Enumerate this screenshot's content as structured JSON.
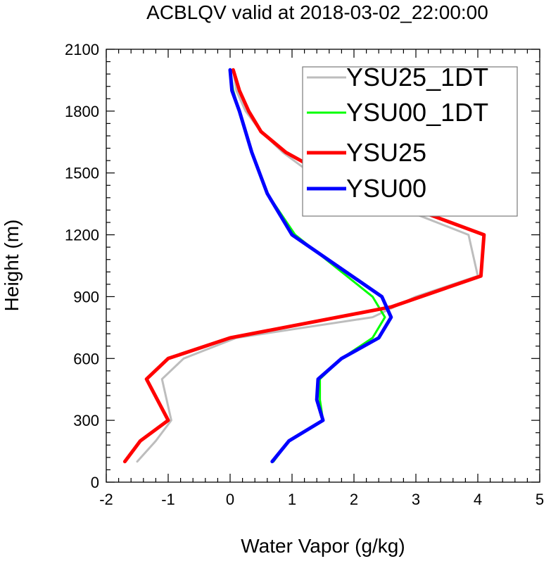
{
  "chart_data": {
    "type": "line",
    "title": "ACBLQV valid at 2018-03-02_22:00:00",
    "xlabel": "Water Vapor (g/kg)",
    "ylabel": "Height (m)",
    "xlim": [
      -2,
      5
    ],
    "ylim": [
      0,
      2100
    ],
    "xticks": [
      "-2",
      "-1",
      "0",
      "1",
      "2",
      "3",
      "4",
      "5"
    ],
    "yticks": [
      "0",
      "300",
      "600",
      "900",
      "1200",
      "1500",
      "1800",
      "2100"
    ],
    "legend_position": "top-right",
    "series": [
      {
        "name": "YSU25_1DT",
        "color": "#bdbdbd",
        "width": 3,
        "points": [
          [
            -1.5,
            100
          ],
          [
            -1.2,
            200
          ],
          [
            -0.95,
            300
          ],
          [
            -1.1,
            500
          ],
          [
            -0.75,
            600
          ],
          [
            0.1,
            700
          ],
          [
            2.3,
            800
          ],
          [
            3.0,
            900
          ],
          [
            4.0,
            1000
          ],
          [
            3.85,
            1200
          ],
          [
            3.0,
            1300
          ],
          [
            1.3,
            1500
          ],
          [
            0.85,
            1600
          ],
          [
            0.5,
            1700
          ],
          [
            0.25,
            1800
          ],
          [
            0.1,
            1900
          ],
          [
            0.05,
            2000
          ]
        ]
      },
      {
        "name": "YSU00_1DT",
        "color": "#00ff00",
        "width": 3,
        "points": [
          [
            0.7,
            100
          ],
          [
            0.95,
            200
          ],
          [
            1.5,
            300
          ],
          [
            1.45,
            400
          ],
          [
            1.45,
            500
          ],
          [
            1.8,
            600
          ],
          [
            2.3,
            700
          ],
          [
            2.5,
            800
          ],
          [
            2.3,
            900
          ],
          [
            1.05,
            1200
          ],
          [
            0.6,
            1400
          ],
          [
            0.35,
            1600
          ],
          [
            0.15,
            1800
          ],
          [
            0.05,
            1900
          ],
          [
            0.0,
            2000
          ]
        ]
      },
      {
        "name": "YSU25",
        "color": "#ff0000",
        "width": 5,
        "points": [
          [
            -1.7,
            100
          ],
          [
            -1.45,
            200
          ],
          [
            -1.0,
            300
          ],
          [
            -1.35,
            500
          ],
          [
            -1.0,
            600
          ],
          [
            0.0,
            700
          ],
          [
            2.6,
            850
          ],
          [
            4.05,
            1000
          ],
          [
            4.1,
            1200
          ],
          [
            3.2,
            1300
          ],
          [
            1.5,
            1500
          ],
          [
            0.9,
            1600
          ],
          [
            0.5,
            1700
          ],
          [
            0.3,
            1800
          ],
          [
            0.15,
            1900
          ],
          [
            0.05,
            2000
          ]
        ]
      },
      {
        "name": "YSU00",
        "color": "#0000ff",
        "width": 5,
        "points": [
          [
            0.68,
            100
          ],
          [
            0.95,
            200
          ],
          [
            1.5,
            300
          ],
          [
            1.4,
            400
          ],
          [
            1.42,
            500
          ],
          [
            1.8,
            600
          ],
          [
            2.4,
            700
          ],
          [
            2.6,
            800
          ],
          [
            2.45,
            900
          ],
          [
            1.0,
            1200
          ],
          [
            0.6,
            1400
          ],
          [
            0.35,
            1600
          ],
          [
            0.15,
            1800
          ],
          [
            0.03,
            1900
          ],
          [
            0.0,
            2000
          ]
        ]
      }
    ]
  }
}
